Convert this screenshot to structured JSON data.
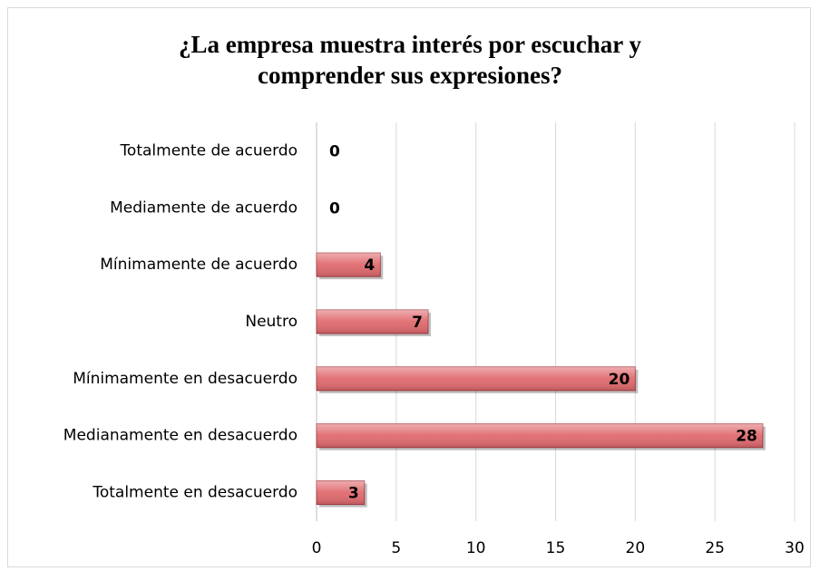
{
  "chart_data": {
    "type": "bar",
    "orientation": "horizontal",
    "title": "¿La empresa muestra interés por escuchar y comprender sus expresiones?",
    "categories": [
      "Totalmente de acuerdo",
      "Mediamente de acuerdo",
      "Mínimamente de acuerdo",
      "Neutro",
      "Mínimamente en desacuerdo",
      "Medianamente en desacuerdo",
      "Totalmente en desacuerdo"
    ],
    "values": [
      0,
      0,
      4,
      7,
      20,
      28,
      3
    ],
    "color": "#e06a6e",
    "xlim": [
      0,
      30
    ],
    "xticks": [
      0,
      5,
      10,
      15,
      20,
      25,
      30
    ],
    "grid": true
  }
}
